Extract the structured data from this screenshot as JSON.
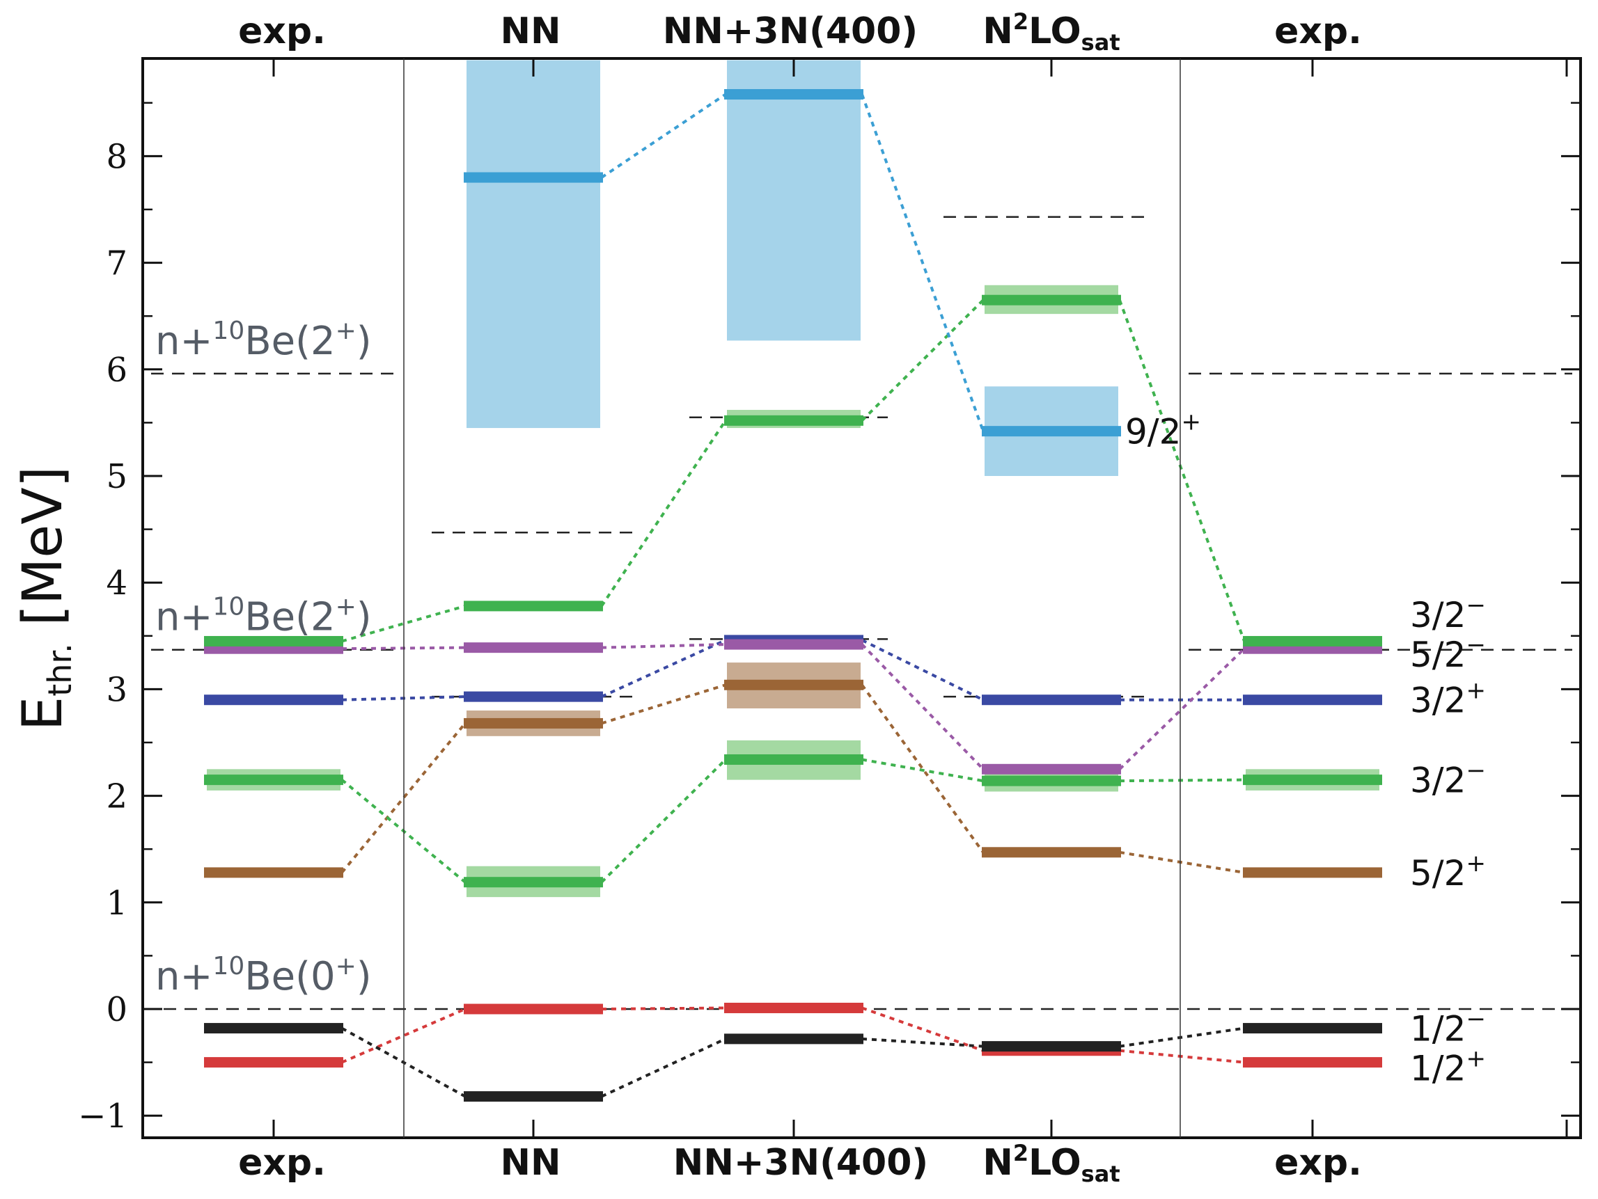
{
  "colors": {
    "red": "#d53a3b",
    "black": "#222222",
    "brown": "#9b6536",
    "green": "#3fb24f",
    "blue": "#3a49a3",
    "purple": "#9a5aa6",
    "cyan": "#3b9fd4",
    "cyan_band": "#a5d3ea",
    "green_band": "#a4d9a2",
    "brown_band": "#c8ab91",
    "blue_band": "#8f9bd0",
    "red_band": "#e79a9a",
    "threshold": "#222222",
    "threshold_label": "#555c66"
  },
  "chart_data": {
    "type": "level-scheme",
    "ylabel": "E",
    "ylabel_sub": "thr.",
    "ylabel_unit": " [MeV]",
    "ylim": [
      -1.2,
      8.9
    ],
    "yticks": [
      -1,
      0,
      1,
      2,
      3,
      4,
      5,
      6,
      7,
      8
    ],
    "ytick_labels": [
      "−1",
      "0",
      "1",
      "2",
      "3",
      "4",
      "5",
      "6",
      "7",
      "8"
    ],
    "columns": [
      {
        "key": "exp_left",
        "label": "exp.",
        "sup": "",
        "sub": ""
      },
      {
        "key": "nn",
        "label": "NN",
        "sup": "",
        "sub": ""
      },
      {
        "key": "nn3n",
        "label": "NN+3N(400)",
        "sup": "",
        "sub": ""
      },
      {
        "key": "n2lo",
        "label": "N",
        "sup": "2",
        "sub": "sat",
        "rest": "LO"
      },
      {
        "key": "exp_right",
        "label": "exp.",
        "sup": "",
        "sub": ""
      }
    ],
    "threshold_labels": [
      {
        "column": "exp_left",
        "text_pre": "n+",
        "sup": "10",
        "text_post": "Be(2",
        "sup2": "+",
        "close": ")",
        "energy": 5.96
      },
      {
        "column": "exp_left",
        "text_pre": "n+",
        "sup": "10",
        "text_post": "Be(2",
        "sup2": "+",
        "close": ")",
        "energy": 3.37
      },
      {
        "column": "exp_left",
        "text_pre": "n+",
        "sup": "10",
        "text_post": "Be(0",
        "sup2": "+",
        "close": ")",
        "energy": 0.0
      }
    ],
    "thresholds": [
      {
        "column": "exp_left",
        "energy": 5.96
      },
      {
        "column": "exp_left",
        "energy": 3.37
      },
      {
        "column": "all",
        "energy": 0.0
      },
      {
        "column": "nn",
        "energy": 4.47
      },
      {
        "column": "nn",
        "energy": 2.93
      },
      {
        "column": "nn3n",
        "energy": 5.55
      },
      {
        "column": "nn3n",
        "energy": 3.47
      },
      {
        "column": "n2lo",
        "energy": 7.43
      },
      {
        "column": "n2lo",
        "energy": 2.93
      },
      {
        "column": "exp_right",
        "energy": 5.96
      },
      {
        "column": "exp_right",
        "energy": 3.37
      }
    ],
    "series": [
      {
        "name": "1/2+",
        "color": "red",
        "levels": [
          {
            "column": "exp_left",
            "energy": -0.5
          },
          {
            "column": "nn",
            "energy": 0.0
          },
          {
            "column": "nn3n",
            "energy": 0.01
          },
          {
            "column": "n2lo",
            "energy": -0.39
          },
          {
            "column": "exp_right",
            "energy": -0.5
          }
        ]
      },
      {
        "name": "1/2−",
        "color": "black",
        "levels": [
          {
            "column": "exp_left",
            "energy": -0.18
          },
          {
            "column": "nn",
            "energy": -0.82
          },
          {
            "column": "nn3n",
            "energy": -0.28
          },
          {
            "column": "n2lo",
            "energy": -0.35
          },
          {
            "column": "exp_right",
            "energy": -0.18
          }
        ]
      },
      {
        "name": "5/2+",
        "color": "brown",
        "levels": [
          {
            "column": "exp_left",
            "energy": 1.28
          },
          {
            "column": "nn",
            "energy": 2.68,
            "band": [
              2.56,
              2.8
            ]
          },
          {
            "column": "nn3n",
            "energy": 3.04,
            "band": [
              2.82,
              3.25
            ]
          },
          {
            "column": "n2lo",
            "energy": 1.47
          },
          {
            "column": "exp_right",
            "energy": 1.28
          }
        ]
      },
      {
        "name": "3/2− (lower)",
        "color": "green",
        "levels": [
          {
            "column": "exp_left",
            "energy": 2.15,
            "band": [
              2.05,
              2.25
            ]
          },
          {
            "column": "nn",
            "energy": 1.19,
            "band": [
              1.05,
              1.34
            ]
          },
          {
            "column": "nn3n",
            "energy": 2.34,
            "band": [
              2.15,
              2.52
            ]
          },
          {
            "column": "n2lo",
            "energy": 2.14,
            "band": [
              2.04,
              2.24
            ]
          },
          {
            "column": "exp_right",
            "energy": 2.15,
            "band": [
              2.05,
              2.25
            ]
          }
        ]
      },
      {
        "name": "3/2+",
        "color": "blue",
        "levels": [
          {
            "column": "exp_left",
            "energy": 2.9
          },
          {
            "column": "nn",
            "energy": 2.93
          },
          {
            "column": "nn3n",
            "energy": 3.46
          },
          {
            "column": "n2lo",
            "energy": 2.9
          },
          {
            "column": "exp_right",
            "energy": 2.9
          }
        ]
      },
      {
        "name": "5/2−",
        "color": "purple",
        "levels": [
          {
            "column": "exp_left",
            "energy": 3.38
          },
          {
            "column": "nn",
            "energy": 3.39
          },
          {
            "column": "nn3n",
            "energy": 3.42
          },
          {
            "column": "n2lo",
            "energy": 2.25
          },
          {
            "column": "exp_right",
            "energy": 3.38
          }
        ]
      },
      {
        "name": "3/2− (upper)",
        "color": "green",
        "levels": [
          {
            "column": "exp_left",
            "energy": 3.45
          },
          {
            "column": "nn",
            "energy": 3.78
          },
          {
            "column": "nn3n",
            "energy": 5.52,
            "band": [
              5.45,
              5.62
            ]
          },
          {
            "column": "n2lo",
            "energy": 6.65,
            "band": [
              6.52,
              6.79
            ]
          },
          {
            "column": "exp_right",
            "energy": 3.45
          }
        ]
      },
      {
        "name": "9/2+",
        "color": "cyan",
        "levels": [
          {
            "column": "nn",
            "energy": 7.8,
            "band": [
              5.45,
              8.9
            ]
          },
          {
            "column": "nn3n",
            "energy": 8.58,
            "band": [
              6.27,
              8.9
            ]
          },
          {
            "column": "n2lo",
            "energy": 5.42,
            "band": [
              5.0,
              5.84
            ]
          }
        ]
      }
    ],
    "state_labels": [
      {
        "text": "9/2",
        "sup": "+",
        "column": "n2lo",
        "energy": 5.42
      },
      {
        "text": "3/2",
        "sup": "−",
        "column": "exp_right",
        "energy": 3.7
      },
      {
        "text": "5/2",
        "sup": "−",
        "column": "exp_right",
        "energy": 3.33
      },
      {
        "text": "3/2",
        "sup": "+",
        "column": "exp_right",
        "energy": 2.9
      },
      {
        "text": "3/2",
        "sup": "−",
        "column": "exp_right",
        "energy": 2.15
      },
      {
        "text": "5/2",
        "sup": "+",
        "column": "exp_right",
        "energy": 1.28
      },
      {
        "text": "1/2",
        "sup": "−",
        "column": "exp_right",
        "energy": -0.18
      },
      {
        "text": "1/2",
        "sup": "+",
        "column": "exp_right",
        "energy": -0.55
      }
    ]
  }
}
